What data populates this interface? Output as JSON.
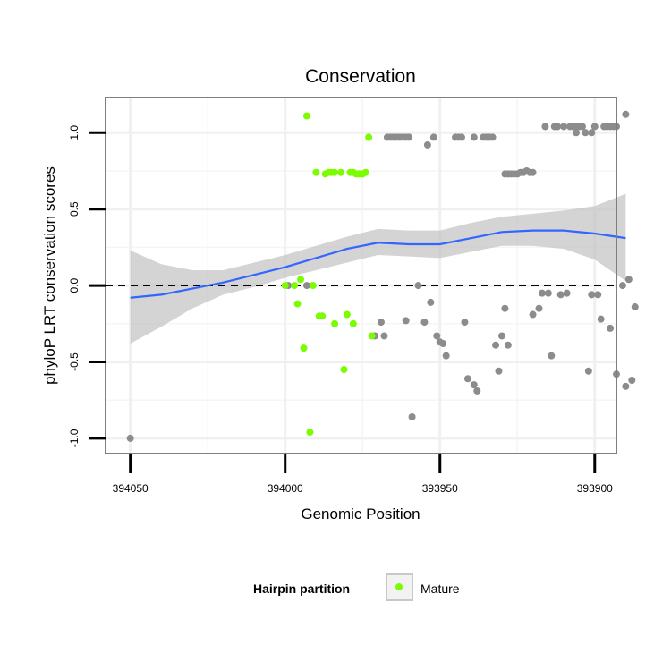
{
  "chart_data": {
    "type": "scatter",
    "title": "Conservation",
    "xlabel": "Genomic Position",
    "ylabel": "phyloP LRT conservation scores",
    "x_reversed": true,
    "xlim": [
      394058,
      393893
    ],
    "ylim": [
      -1.1,
      1.23
    ],
    "x_ticks": [
      {
        "value": 394050,
        "label": "394050"
      },
      {
        "value": 394000,
        "label": "394000"
      },
      {
        "value": 393950,
        "label": "393950"
      },
      {
        "value": 393900,
        "label": "393900"
      }
    ],
    "y_ticks": [
      {
        "value": -1.0,
        "label": "-1.0"
      },
      {
        "value": -0.5,
        "label": "-0.5"
      },
      {
        "value": 0.0,
        "label": "0.0"
      },
      {
        "value": 0.5,
        "label": "0.5"
      },
      {
        "value": 1.0,
        "label": "1.0"
      }
    ],
    "reference_line": {
      "y": 0,
      "style": "dashed",
      "color": "#000000"
    },
    "grid": true,
    "legend": {
      "title": "Hairpin partition",
      "placement": "bottom",
      "entries": [
        {
          "label": "Mature",
          "color": "#7cfc00"
        }
      ]
    },
    "series": [
      {
        "name": "",
        "color": "#8c8c8c",
        "points": [
          {
            "x": 394050,
            "y": -1.0
          },
          {
            "x": 393999,
            "y": 0.0
          },
          {
            "x": 393993,
            "y": 0.0
          },
          {
            "x": 393971,
            "y": -0.33
          },
          {
            "x": 393969,
            "y": -0.24
          },
          {
            "x": 393968,
            "y": -0.33
          },
          {
            "x": 393967,
            "y": 0.97
          },
          {
            "x": 393966,
            "y": 0.97
          },
          {
            "x": 393965,
            "y": 0.97
          },
          {
            "x": 393964,
            "y": 0.97
          },
          {
            "x": 393963,
            "y": 0.97
          },
          {
            "x": 393962,
            "y": 0.97
          },
          {
            "x": 393961,
            "y": 0.97
          },
          {
            "x": 393961,
            "y": -0.23
          },
          {
            "x": 393960,
            "y": 0.97
          },
          {
            "x": 393959,
            "y": -0.86
          },
          {
            "x": 393957,
            "y": 0.0
          },
          {
            "x": 393955,
            "y": -0.24
          },
          {
            "x": 393954,
            "y": 0.92
          },
          {
            "x": 393953,
            "y": -0.11
          },
          {
            "x": 393952,
            "y": 0.97
          },
          {
            "x": 393951,
            "y": -0.33
          },
          {
            "x": 393950,
            "y": -0.37
          },
          {
            "x": 393949,
            "y": -0.38
          },
          {
            "x": 393948,
            "y": -0.46
          },
          {
            "x": 393945,
            "y": 0.97
          },
          {
            "x": 393944,
            "y": 0.97
          },
          {
            "x": 393943,
            "y": 0.97
          },
          {
            "x": 393942,
            "y": -0.24
          },
          {
            "x": 393941,
            "y": -0.61
          },
          {
            "x": 393939,
            "y": 0.97
          },
          {
            "x": 393939,
            "y": -0.65
          },
          {
            "x": 393938,
            "y": -0.69
          },
          {
            "x": 393936,
            "y": 0.97
          },
          {
            "x": 393935,
            "y": 0.97
          },
          {
            "x": 393934,
            "y": 0.97
          },
          {
            "x": 393933,
            "y": 0.97
          },
          {
            "x": 393932,
            "y": -0.39
          },
          {
            "x": 393931,
            "y": -0.56
          },
          {
            "x": 393930,
            "y": -0.33
          },
          {
            "x": 393929,
            "y": -0.15
          },
          {
            "x": 393929,
            "y": 0.73
          },
          {
            "x": 393928,
            "y": 0.73
          },
          {
            "x": 393928,
            "y": -0.39
          },
          {
            "x": 393927,
            "y": 0.73
          },
          {
            "x": 393926,
            "y": 0.73
          },
          {
            "x": 393925,
            "y": 0.73
          },
          {
            "x": 393924,
            "y": 0.74
          },
          {
            "x": 393923,
            "y": 0.74
          },
          {
            "x": 393922,
            "y": 0.75
          },
          {
            "x": 393921,
            "y": 0.74
          },
          {
            "x": 393920,
            "y": 0.74
          },
          {
            "x": 393920,
            "y": -0.19
          },
          {
            "x": 393918,
            "y": -0.15
          },
          {
            "x": 393917,
            "y": -0.05
          },
          {
            "x": 393916,
            "y": 1.04
          },
          {
            "x": 393915,
            "y": -0.05
          },
          {
            "x": 393914,
            "y": -0.46
          },
          {
            "x": 393913,
            "y": 1.04
          },
          {
            "x": 393912,
            "y": 1.04
          },
          {
            "x": 393911,
            "y": -0.06
          },
          {
            "x": 393910,
            "y": 1.04
          },
          {
            "x": 393909,
            "y": -0.05
          },
          {
            "x": 393908,
            "y": 1.04
          },
          {
            "x": 393907,
            "y": 1.04
          },
          {
            "x": 393906,
            "y": 1.0
          },
          {
            "x": 393906,
            "y": 1.04
          },
          {
            "x": 393905,
            "y": 1.04
          },
          {
            "x": 393904,
            "y": 1.04
          },
          {
            "x": 393903,
            "y": 1.0
          },
          {
            "x": 393902,
            "y": -0.56
          },
          {
            "x": 393901,
            "y": 1.0
          },
          {
            "x": 393901,
            "y": -0.06
          },
          {
            "x": 393900,
            "y": 1.04
          },
          {
            "x": 393899,
            "y": -0.06
          },
          {
            "x": 393898,
            "y": -0.22
          },
          {
            "x": 393897,
            "y": 1.04
          },
          {
            "x": 393896,
            "y": 1.04
          },
          {
            "x": 393895,
            "y": 1.04
          },
          {
            "x": 393895,
            "y": -0.28
          },
          {
            "x": 393894,
            "y": 1.04
          },
          {
            "x": 393893,
            "y": 1.04
          },
          {
            "x": 393893,
            "y": -0.58
          },
          {
            "x": 393891,
            "y": 0.0
          },
          {
            "x": 393890,
            "y": 1.12
          },
          {
            "x": 393890,
            "y": -0.66
          },
          {
            "x": 393889,
            "y": 0.04
          },
          {
            "x": 393888,
            "y": -0.62
          },
          {
            "x": 393887,
            "y": -0.14
          }
        ]
      },
      {
        "name": "Mature",
        "color": "#7cfc00",
        "points": [
          {
            "x": 394000,
            "y": 0.0
          },
          {
            "x": 393997,
            "y": 0.0
          },
          {
            "x": 393996,
            "y": -0.12
          },
          {
            "x": 393995,
            "y": 0.04
          },
          {
            "x": 393994,
            "y": -0.41
          },
          {
            "x": 393993,
            "y": 1.11
          },
          {
            "x": 393992,
            "y": -0.96
          },
          {
            "x": 393991,
            "y": 0.0
          },
          {
            "x": 393990,
            "y": 0.74
          },
          {
            "x": 393989,
            "y": -0.2
          },
          {
            "x": 393988,
            "y": -0.2
          },
          {
            "x": 393987,
            "y": 0.73
          },
          {
            "x": 393986,
            "y": 0.74
          },
          {
            "x": 393985,
            "y": 0.74
          },
          {
            "x": 393984,
            "y": -0.25
          },
          {
            "x": 393984,
            "y": 0.74
          },
          {
            "x": 393982,
            "y": 0.74
          },
          {
            "x": 393981,
            "y": -0.55
          },
          {
            "x": 393980,
            "y": -0.19
          },
          {
            "x": 393979,
            "y": 0.74
          },
          {
            "x": 393978,
            "y": 0.74
          },
          {
            "x": 393978,
            "y": -0.25
          },
          {
            "x": 393977,
            "y": 0.73
          },
          {
            "x": 393976,
            "y": 0.73
          },
          {
            "x": 393975,
            "y": 0.73
          },
          {
            "x": 393974,
            "y": 0.74
          },
          {
            "x": 393973,
            "y": 0.97
          },
          {
            "x": 393972,
            "y": -0.33
          }
        ]
      }
    ],
    "smooth": {
      "color": "#3366ff",
      "band_color": "#bdbdbd",
      "points": [
        {
          "x": 394050,
          "y": -0.08,
          "lo": -0.38,
          "hi": 0.23
        },
        {
          "x": 394040,
          "y": -0.06,
          "lo": -0.27,
          "hi": 0.14
        },
        {
          "x": 394030,
          "y": -0.02,
          "lo": -0.15,
          "hi": 0.1
        },
        {
          "x": 394020,
          "y": 0.02,
          "lo": -0.06,
          "hi": 0.1
        },
        {
          "x": 394010,
          "y": 0.07,
          "lo": -0.01,
          "hi": 0.15
        },
        {
          "x": 394000,
          "y": 0.12,
          "lo": 0.05,
          "hi": 0.2
        },
        {
          "x": 393990,
          "y": 0.18,
          "lo": 0.1,
          "hi": 0.26
        },
        {
          "x": 393980,
          "y": 0.24,
          "lo": 0.15,
          "hi": 0.32
        },
        {
          "x": 393970,
          "y": 0.28,
          "lo": 0.2,
          "hi": 0.37
        },
        {
          "x": 393960,
          "y": 0.27,
          "lo": 0.19,
          "hi": 0.36
        },
        {
          "x": 393950,
          "y": 0.27,
          "lo": 0.18,
          "hi": 0.36
        },
        {
          "x": 393940,
          "y": 0.31,
          "lo": 0.22,
          "hi": 0.41
        },
        {
          "x": 393930,
          "y": 0.35,
          "lo": 0.26,
          "hi": 0.45
        },
        {
          "x": 393920,
          "y": 0.36,
          "lo": 0.26,
          "hi": 0.47
        },
        {
          "x": 393910,
          "y": 0.36,
          "lo": 0.24,
          "hi": 0.49
        },
        {
          "x": 393900,
          "y": 0.34,
          "lo": 0.17,
          "hi": 0.52
        },
        {
          "x": 393890,
          "y": 0.31,
          "lo": 0.03,
          "hi": 0.6
        }
      ]
    }
  }
}
